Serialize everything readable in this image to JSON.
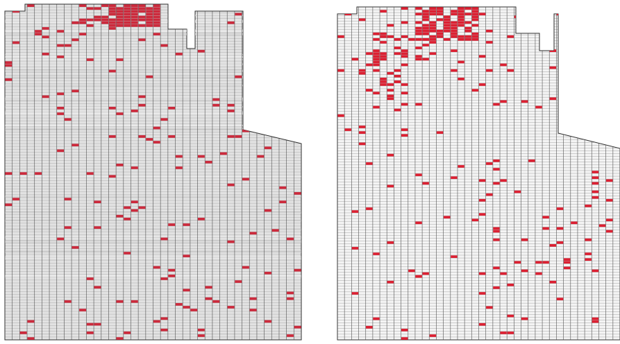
{
  "figure": {
    "background": "#ffffff",
    "panels": [
      {
        "id": "left",
        "style": "scan",
        "grid_columns": 40,
        "grid_rows": 118,
        "cell_fill": "#e2e2e2",
        "stripe_fill": "#eeeeee",
        "grid_line_color": "#3c3c3c",
        "highlight_color": "#cc2a3c",
        "seed": 11,
        "noise_cell_count": 150,
        "clusters": [
          {
            "col": [
              14,
              20
            ],
            "row": [
              0,
              7
            ],
            "density": 0.78
          },
          {
            "col": [
              9,
              14
            ],
            "row": [
              0,
              6
            ],
            "density": 0.28
          },
          {
            "col": [
              3,
              10
            ],
            "row": [
              5,
              18
            ],
            "density": 0.12
          }
        ]
      },
      {
        "id": "right",
        "style": "clean",
        "grid_columns": 40,
        "grid_rows": 118,
        "cell_fill": "#f4f4f4",
        "stripe_fill": "#f4f4f4",
        "grid_line_color": "#505050",
        "highlight_color": "#dc2032",
        "seed": 29,
        "noise_cell_count": 165,
        "clusters": [
          {
            "col": [
              11,
              19
            ],
            "row": [
              0,
              11
            ],
            "density": 0.7
          },
          {
            "col": [
              5,
              13
            ],
            "row": [
              8,
              18
            ],
            "density": 0.3
          },
          {
            "col": [
              3,
              9
            ],
            "row": [
              16,
              32
            ],
            "density": 0.14
          }
        ]
      }
    ]
  }
}
